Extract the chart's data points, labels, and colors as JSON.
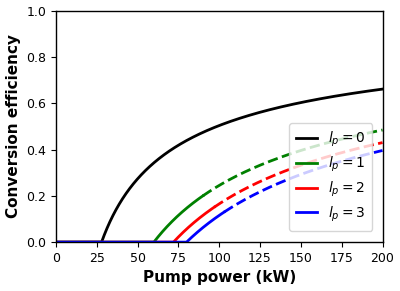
{
  "xlabel": "Pump power (kW)",
  "ylabel": "Conversion efficiency",
  "xlim": [
    0,
    200
  ],
  "ylim": [
    0,
    1.0
  ],
  "xticks": [
    0,
    25,
    50,
    75,
    100,
    125,
    150,
    175,
    200
  ],
  "yticks": [
    0.0,
    0.2,
    0.4,
    0.6,
    0.8,
    1.0
  ],
  "curves": [
    {
      "lp": 0,
      "color": "#000000",
      "threshold": 28.0,
      "scale": 65.0,
      "solid_end": 200,
      "dashed_start": 200,
      "label": "$l_p = 0$"
    },
    {
      "lp": 1,
      "color": "#008000",
      "threshold": 60.0,
      "scale": 105.0,
      "solid_end": 90,
      "dashed_start": 90,
      "label": "$l_p = 1$"
    },
    {
      "lp": 2,
      "color": "#ff0000",
      "threshold": 72.0,
      "scale": 120.0,
      "solid_end": 97,
      "dashed_start": 97,
      "label": "$l_p = 2$"
    },
    {
      "lp": 3,
      "color": "#0000ff",
      "threshold": 80.0,
      "scale": 130.0,
      "solid_end": 103,
      "dashed_start": 103,
      "label": "$l_p = 3$"
    }
  ],
  "linewidth": 2.0,
  "xlabel_fontsize": 11,
  "ylabel_fontsize": 11,
  "tick_fontsize": 9,
  "legend_fontsize": 10,
  "figsize": [
    4.0,
    2.91
  ],
  "dpi": 100
}
